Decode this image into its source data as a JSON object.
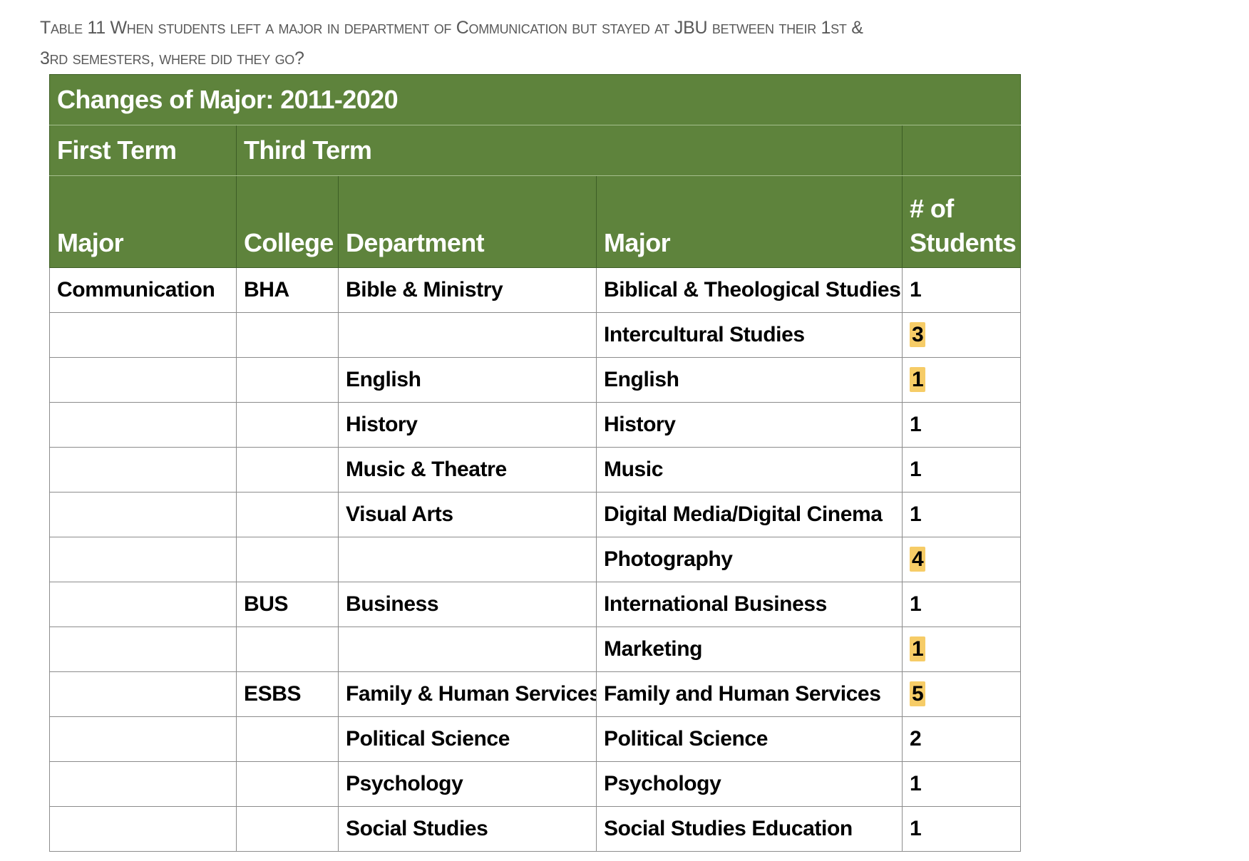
{
  "caption": {
    "line1": "Table 11 When students left a major in department of Communication but stayed at JBU between their 1st &",
    "line2": "3rd semesters, where did they go?"
  },
  "table": {
    "title": "Changes of Major: 2011-2020",
    "first_term_label": "First Term",
    "third_term_label": "Third Term",
    "columns": [
      "Major",
      "College",
      "Department",
      "Major",
      "# of Students"
    ],
    "rows": [
      {
        "first_major": "Communication",
        "college": "BHA",
        "department": "Bible & Ministry",
        "major": "Biblical & Theological Studies",
        "count": "1",
        "highlight": false
      },
      {
        "first_major": "",
        "college": "",
        "department": "",
        "major": "Intercultural Studies",
        "count": "3",
        "highlight": true
      },
      {
        "first_major": "",
        "college": "",
        "department": "English",
        "major": "English",
        "count": "1",
        "highlight": true
      },
      {
        "first_major": "",
        "college": "",
        "department": "History",
        "major": "History",
        "count": "1",
        "highlight": false
      },
      {
        "first_major": "",
        "college": "",
        "department": "Music & Theatre",
        "major": "Music",
        "count": "1",
        "highlight": false
      },
      {
        "first_major": "",
        "college": "",
        "department": "Visual Arts",
        "major": "Digital Media/Digital Cinema",
        "count": "1",
        "highlight": false
      },
      {
        "first_major": "",
        "college": "",
        "department": "",
        "major": "Photography",
        "count": "4",
        "highlight": true
      },
      {
        "first_major": "",
        "college": "BUS",
        "department": "Business",
        "major": "International Business",
        "count": "1",
        "highlight": false
      },
      {
        "first_major": "",
        "college": "",
        "department": "",
        "major": "Marketing",
        "count": "1",
        "highlight": true
      },
      {
        "first_major": "",
        "college": "ESBS",
        "department": "Family & Human Services",
        "major": "Family and Human Services",
        "count": "5",
        "highlight": true
      },
      {
        "first_major": "",
        "college": "",
        "department": "Political Science",
        "major": "Political Science",
        "count": "2",
        "highlight": false
      },
      {
        "first_major": "",
        "college": "",
        "department": "Psychology",
        "major": "Psychology",
        "count": "1",
        "highlight": false
      },
      {
        "first_major": "",
        "college": "",
        "department": "Social Studies",
        "major": "Social Studies Education",
        "count": "1",
        "highlight": false
      }
    ]
  },
  "colors": {
    "header_green": "#5e833c",
    "highlight_yellow": "#f6cc67",
    "caption_gray": "#595959"
  }
}
